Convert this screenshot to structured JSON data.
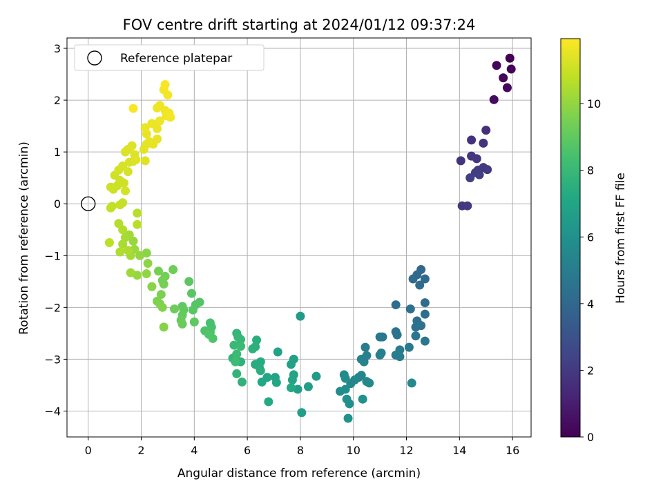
{
  "chart_data": {
    "type": "scatter",
    "title": "FOV centre drift starting at 2024/01/12 09:37:24",
    "xlabel": "Angular distance from reference (arcmin)",
    "ylabel": "Rotation from reference (arcmin)",
    "xlim": [
      -0.8,
      16.7
    ],
    "ylim": [
      -4.5,
      3.2
    ],
    "xticks": [
      0,
      2,
      4,
      6,
      8,
      10,
      12,
      14,
      16
    ],
    "yticks": [
      -4,
      -3,
      -2,
      -1,
      0,
      1,
      2,
      3
    ],
    "grid": true,
    "colormap": "viridis",
    "colorbar": {
      "label": "Hours from first FF file",
      "range": [
        0,
        11.95
      ],
      "ticks": [
        0,
        2,
        4,
        6,
        8,
        10
      ]
    },
    "legend": {
      "position": "top-left",
      "entries": [
        "Reference platepar"
      ]
    },
    "reference_point": {
      "x": 0,
      "y": 0,
      "label": "Reference platepar"
    },
    "points": [
      {
        "x": 15.9,
        "y": 2.81,
        "c": 0.0
      },
      {
        "x": 15.95,
        "y": 2.6,
        "c": 0.1
      },
      {
        "x": 15.4,
        "y": 2.67,
        "c": 0.15
      },
      {
        "x": 15.65,
        "y": 2.43,
        "c": 0.2
      },
      {
        "x": 15.8,
        "y": 2.24,
        "c": 0.25
      },
      {
        "x": 15.3,
        "y": 2.01,
        "c": 0.35
      },
      {
        "x": 15.0,
        "y": 1.42,
        "c": 1.6
      },
      {
        "x": 14.45,
        "y": 1.23,
        "c": 1.7
      },
      {
        "x": 14.9,
        "y": 1.17,
        "c": 1.75
      },
      {
        "x": 14.05,
        "y": 0.83,
        "c": 1.8
      },
      {
        "x": 14.45,
        "y": 0.92,
        "c": 1.85
      },
      {
        "x": 14.65,
        "y": 0.87,
        "c": 1.9
      },
      {
        "x": 14.9,
        "y": 0.7,
        "c": 1.95
      },
      {
        "x": 15.05,
        "y": 0.66,
        "c": 2.0
      },
      {
        "x": 14.7,
        "y": 0.65,
        "c": 2.05
      },
      {
        "x": 14.6,
        "y": 0.6,
        "c": 2.1
      },
      {
        "x": 14.75,
        "y": 0.56,
        "c": 2.15
      },
      {
        "x": 14.4,
        "y": 0.5,
        "c": 2.2
      },
      {
        "x": 14.1,
        "y": -0.04,
        "c": 1.95
      },
      {
        "x": 14.3,
        "y": -0.04,
        "c": 2.0
      },
      {
        "x": 12.55,
        "y": -1.27,
        "c": 4.0
      },
      {
        "x": 12.4,
        "y": -1.37,
        "c": 4.05
      },
      {
        "x": 12.25,
        "y": -1.45,
        "c": 4.1
      },
      {
        "x": 12.7,
        "y": -1.45,
        "c": 4.1
      },
      {
        "x": 12.5,
        "y": -1.57,
        "c": 4.15
      },
      {
        "x": 12.7,
        "y": -1.91,
        "c": 4.2
      },
      {
        "x": 11.6,
        "y": -1.95,
        "c": 4.25
      },
      {
        "x": 12.15,
        "y": -2.03,
        "c": 4.3
      },
      {
        "x": 12.7,
        "y": -2.13,
        "c": 4.35
      },
      {
        "x": 12.4,
        "y": -2.26,
        "c": 4.4
      },
      {
        "x": 12.35,
        "y": -2.38,
        "c": 4.45
      },
      {
        "x": 12.55,
        "y": -2.35,
        "c": 4.5
      },
      {
        "x": 11.6,
        "y": -2.47,
        "c": 4.55
      },
      {
        "x": 11.65,
        "y": -2.53,
        "c": 4.6
      },
      {
        "x": 12.35,
        "y": -2.55,
        "c": 4.65
      },
      {
        "x": 12.7,
        "y": -2.65,
        "c": 4.7
      },
      {
        "x": 11.0,
        "y": -2.57,
        "c": 4.75
      },
      {
        "x": 11.1,
        "y": -2.57,
        "c": 4.8
      },
      {
        "x": 12.1,
        "y": -2.77,
        "c": 4.85
      },
      {
        "x": 11.75,
        "y": -2.82,
        "c": 4.9
      },
      {
        "x": 10.45,
        "y": -2.77,
        "c": 4.95
      },
      {
        "x": 11.6,
        "y": -2.92,
        "c": 5.0
      },
      {
        "x": 11.75,
        "y": -2.95,
        "c": 5.05
      },
      {
        "x": 11.05,
        "y": -2.88,
        "c": 5.1
      },
      {
        "x": 11.0,
        "y": -2.92,
        "c": 5.15
      },
      {
        "x": 10.5,
        "y": -2.93,
        "c": 5.2
      },
      {
        "x": 10.3,
        "y": -3.0,
        "c": 5.25
      },
      {
        "x": 10.4,
        "y": -3.05,
        "c": 5.3
      },
      {
        "x": 10.3,
        "y": -3.31,
        "c": 5.35
      },
      {
        "x": 10.2,
        "y": -3.35,
        "c": 5.4
      },
      {
        "x": 10.05,
        "y": -3.4,
        "c": 5.45
      },
      {
        "x": 9.9,
        "y": -3.47,
        "c": 5.5
      },
      {
        "x": 10.5,
        "y": -3.43,
        "c": 5.55
      },
      {
        "x": 10.6,
        "y": -3.46,
        "c": 5.6
      },
      {
        "x": 12.2,
        "y": -3.46,
        "c": 5.6
      },
      {
        "x": 9.65,
        "y": -3.3,
        "c": 5.7
      },
      {
        "x": 9.7,
        "y": -3.37,
        "c": 5.75
      },
      {
        "x": 9.5,
        "y": -3.62,
        "c": 5.8
      },
      {
        "x": 9.7,
        "y": -3.58,
        "c": 5.85
      },
      {
        "x": 9.75,
        "y": -3.77,
        "c": 5.9
      },
      {
        "x": 9.85,
        "y": -3.86,
        "c": 5.95
      },
      {
        "x": 10.35,
        "y": -3.77,
        "c": 6.0
      },
      {
        "x": 9.8,
        "y": -4.14,
        "c": 6.05
      },
      {
        "x": 8.0,
        "y": -2.17,
        "c": 6.5
      },
      {
        "x": 8.6,
        "y": -3.33,
        "c": 6.55
      },
      {
        "x": 8.3,
        "y": -3.53,
        "c": 6.6
      },
      {
        "x": 7.9,
        "y": -3.58,
        "c": 6.65
      },
      {
        "x": 8.05,
        "y": -4.03,
        "c": 6.7
      },
      {
        "x": 7.75,
        "y": -3.0,
        "c": 6.75
      },
      {
        "x": 7.65,
        "y": -3.1,
        "c": 6.8
      },
      {
        "x": 7.15,
        "y": -2.86,
        "c": 6.85
      },
      {
        "x": 7.75,
        "y": -3.3,
        "c": 6.9
      },
      {
        "x": 7.05,
        "y": -3.35,
        "c": 6.95
      },
      {
        "x": 7.7,
        "y": -3.4,
        "c": 7.0
      },
      {
        "x": 6.75,
        "y": -3.35,
        "c": 7.05
      },
      {
        "x": 7.1,
        "y": -3.45,
        "c": 7.1
      },
      {
        "x": 6.55,
        "y": -3.44,
        "c": 7.15
      },
      {
        "x": 7.65,
        "y": -3.55,
        "c": 7.2
      },
      {
        "x": 6.8,
        "y": -3.82,
        "c": 7.25
      },
      {
        "x": 6.5,
        "y": -3.05,
        "c": 7.3
      },
      {
        "x": 6.3,
        "y": -3.1,
        "c": 7.35
      },
      {
        "x": 6.45,
        "y": -3.15,
        "c": 7.4
      },
      {
        "x": 6.5,
        "y": -3.22,
        "c": 7.45
      },
      {
        "x": 6.35,
        "y": -2.63,
        "c": 7.5
      },
      {
        "x": 6.3,
        "y": -2.76,
        "c": 7.55
      },
      {
        "x": 6.2,
        "y": -2.8,
        "c": 7.6
      },
      {
        "x": 5.75,
        "y": -3.05,
        "c": 7.65
      },
      {
        "x": 5.8,
        "y": -3.44,
        "c": 7.7
      },
      {
        "x": 5.6,
        "y": -3.28,
        "c": 7.75
      },
      {
        "x": 5.45,
        "y": -2.98,
        "c": 7.8
      },
      {
        "x": 5.6,
        "y": -2.5,
        "c": 7.85
      },
      {
        "x": 5.65,
        "y": -2.57,
        "c": 7.9
      },
      {
        "x": 5.75,
        "y": -2.62,
        "c": 7.95
      },
      {
        "x": 5.5,
        "y": -2.73,
        "c": 8.0
      },
      {
        "x": 5.75,
        "y": -2.75,
        "c": 8.05
      },
      {
        "x": 5.6,
        "y": -2.9,
        "c": 8.1
      },
      {
        "x": 5.55,
        "y": -3.05,
        "c": 8.15
      },
      {
        "x": 4.6,
        "y": -2.3,
        "c": 8.4
      },
      {
        "x": 4.65,
        "y": -2.38,
        "c": 8.45
      },
      {
        "x": 4.6,
        "y": -2.48,
        "c": 8.5
      },
      {
        "x": 4.4,
        "y": -2.45,
        "c": 8.55
      },
      {
        "x": 4.7,
        "y": -2.6,
        "c": 8.6
      },
      {
        "x": 4.55,
        "y": -2.52,
        "c": 8.65
      },
      {
        "x": 4.2,
        "y": -1.9,
        "c": 8.7
      },
      {
        "x": 4.05,
        "y": -1.95,
        "c": 8.75
      },
      {
        "x": 3.95,
        "y": -2.05,
        "c": 8.8
      },
      {
        "x": 3.9,
        "y": -1.73,
        "c": 8.85
      },
      {
        "x": 3.8,
        "y": -1.5,
        "c": 8.9
      },
      {
        "x": 4.0,
        "y": -2.28,
        "c": 8.95
      },
      {
        "x": 3.55,
        "y": -1.98,
        "c": 9.0
      },
      {
        "x": 3.6,
        "y": -2.05,
        "c": 9.05
      },
      {
        "x": 3.55,
        "y": -2.15,
        "c": 9.1
      },
      {
        "x": 3.5,
        "y": -2.25,
        "c": 9.15
      },
      {
        "x": 3.55,
        "y": -2.32,
        "c": 9.2
      },
      {
        "x": 3.25,
        "y": -2.03,
        "c": 9.25
      },
      {
        "x": 3.2,
        "y": -1.27,
        "c": 9.3
      },
      {
        "x": 2.9,
        "y": -1.4,
        "c": 9.35
      },
      {
        "x": 2.8,
        "y": -1.48,
        "c": 9.4
      },
      {
        "x": 2.65,
        "y": -1.3,
        "c": 9.45
      },
      {
        "x": 2.85,
        "y": -1.55,
        "c": 9.5
      },
      {
        "x": 2.75,
        "y": -1.75,
        "c": 9.55
      },
      {
        "x": 2.6,
        "y": -1.88,
        "c": 9.6
      },
      {
        "x": 2.7,
        "y": -1.93,
        "c": 9.65
      },
      {
        "x": 2.8,
        "y": -2.0,
        "c": 9.7
      },
      {
        "x": 2.85,
        "y": -2.38,
        "c": 9.75
      },
      {
        "x": 2.4,
        "y": -1.6,
        "c": 9.8
      },
      {
        "x": 2.2,
        "y": -0.95,
        "c": 9.85
      },
      {
        "x": 2.25,
        "y": -1.15,
        "c": 9.9
      },
      {
        "x": 2.2,
        "y": -1.35,
        "c": 9.95
      },
      {
        "x": 1.95,
        "y": -1.0,
        "c": 10.0
      },
      {
        "x": 1.85,
        "y": -1.38,
        "c": 10.05
      },
      {
        "x": 1.7,
        "y": -0.72,
        "c": 10.1
      },
      {
        "x": 1.75,
        "y": -0.88,
        "c": 10.15
      },
      {
        "x": 1.6,
        "y": -1.33,
        "c": 10.2
      },
      {
        "x": 1.55,
        "y": -0.6,
        "c": 10.25
      },
      {
        "x": 1.6,
        "y": -1.0,
        "c": 10.3
      },
      {
        "x": 1.4,
        "y": -0.65,
        "c": 10.35
      },
      {
        "x": 1.3,
        "y": -0.78,
        "c": 10.4
      },
      {
        "x": 1.5,
        "y": -0.9,
        "c": 10.45
      },
      {
        "x": 1.2,
        "y": -0.93,
        "c": 10.5
      },
      {
        "x": 1.3,
        "y": -0.5,
        "c": 10.55
      },
      {
        "x": 1.15,
        "y": -0.38,
        "c": 10.6
      },
      {
        "x": 1.85,
        "y": -0.18,
        "c": 10.65
      },
      {
        "x": 1.85,
        "y": -0.4,
        "c": 10.7
      },
      {
        "x": 0.8,
        "y": -0.75,
        "c": 10.75
      },
      {
        "x": 0.9,
        "y": -0.05,
        "c": 10.8
      },
      {
        "x": 0.85,
        "y": -0.08,
        "c": 10.85
      },
      {
        "x": 1.2,
        "y": -0.02,
        "c": 10.9
      },
      {
        "x": 1.3,
        "y": 0.02,
        "c": 10.95
      },
      {
        "x": 0.95,
        "y": 0.28,
        "c": 11.0
      },
      {
        "x": 1.1,
        "y": 0.35,
        "c": 11.0
      },
      {
        "x": 0.85,
        "y": 0.32,
        "c": 11.05
      },
      {
        "x": 1.2,
        "y": 0.45,
        "c": 11.05
      },
      {
        "x": 1.0,
        "y": 0.55,
        "c": 11.1
      },
      {
        "x": 1.35,
        "y": 0.4,
        "c": 11.1
      },
      {
        "x": 1.4,
        "y": 0.25,
        "c": 11.15
      },
      {
        "x": 1.15,
        "y": 0.65,
        "c": 11.15
      },
      {
        "x": 1.3,
        "y": 0.73,
        "c": 11.2
      },
      {
        "x": 1.5,
        "y": 0.62,
        "c": 11.2
      },
      {
        "x": 1.55,
        "y": 0.8,
        "c": 11.25
      },
      {
        "x": 1.7,
        "y": 0.82,
        "c": 11.25
      },
      {
        "x": 1.4,
        "y": 1.0,
        "c": 11.3
      },
      {
        "x": 1.5,
        "y": 1.05,
        "c": 11.3
      },
      {
        "x": 1.65,
        "y": 1.12,
        "c": 11.35
      },
      {
        "x": 1.75,
        "y": 0.95,
        "c": 11.35
      },
      {
        "x": 1.8,
        "y": 0.85,
        "c": 11.4
      },
      {
        "x": 2.15,
        "y": 0.83,
        "c": 11.4
      },
      {
        "x": 2.1,
        "y": 1.05,
        "c": 11.45
      },
      {
        "x": 2.2,
        "y": 1.15,
        "c": 11.45
      },
      {
        "x": 2.3,
        "y": 1.2,
        "c": 11.5
      },
      {
        "x": 2.45,
        "y": 1.15,
        "c": 11.5
      },
      {
        "x": 2.6,
        "y": 1.25,
        "c": 11.55
      },
      {
        "x": 2.2,
        "y": 1.35,
        "c": 11.55
      },
      {
        "x": 2.15,
        "y": 1.47,
        "c": 11.6
      },
      {
        "x": 2.4,
        "y": 1.55,
        "c": 11.6
      },
      {
        "x": 2.6,
        "y": 1.45,
        "c": 11.62
      },
      {
        "x": 2.7,
        "y": 1.6,
        "c": 11.65
      },
      {
        "x": 2.6,
        "y": 1.85,
        "c": 11.65
      },
      {
        "x": 2.7,
        "y": 1.9,
        "c": 11.7
      },
      {
        "x": 2.9,
        "y": 1.8,
        "c": 11.7
      },
      {
        "x": 2.95,
        "y": 1.7,
        "c": 11.72
      },
      {
        "x": 3.05,
        "y": 1.75,
        "c": 11.75
      },
      {
        "x": 3.1,
        "y": 1.67,
        "c": 11.75
      },
      {
        "x": 3.0,
        "y": 2.1,
        "c": 11.8
      },
      {
        "x": 2.85,
        "y": 2.2,
        "c": 11.8
      },
      {
        "x": 2.9,
        "y": 2.3,
        "c": 11.85
      },
      {
        "x": 1.7,
        "y": 1.84,
        "c": 11.85
      }
    ]
  }
}
